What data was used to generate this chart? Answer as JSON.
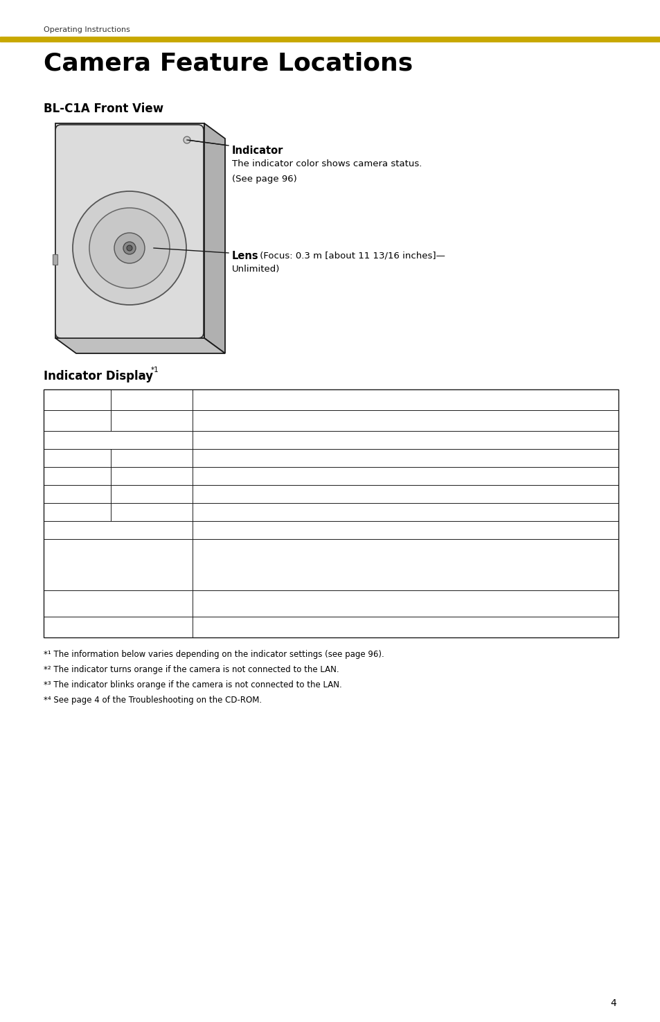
{
  "page_bg": "#ffffff",
  "header_text": "Operating Instructions",
  "header_bar_color": "#C8A800",
  "title": "Camera Feature Locations",
  "section1_title": "BL-C1A Front View",
  "indicator_label": "Indicator",
  "indicator_desc1": "The indicator color shows camera status.",
  "indicator_desc2": "(See page 96)",
  "lens_label": "Lens",
  "lens_desc": " (Focus: 0.3 m [about 11 13/16 inches]—",
  "lens_desc2": "Unlimited)",
  "section2_title": "Indicator Display",
  "footnotes": [
    "*¹ The information below varies depending on the indicator settings (see page 96).",
    "*² The indicator turns orange if the camera is not connected to the LAN.",
    "*³ The indicator blinks orange if the camera is not connected to the LAN.",
    "*⁴ See page 4 of the Troubleshooting on the CD-ROM."
  ],
  "page_number": "4"
}
